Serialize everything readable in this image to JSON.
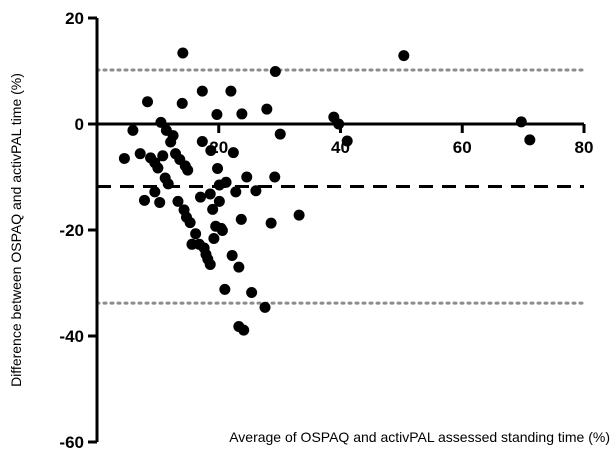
{
  "chart_data": {
    "type": "scatter",
    "title": "",
    "xlabel": "Average of OSPAQ and activPAL assessed standing time (%)",
    "ylabel": "Difference between OSPAQ and activPAL time  (%)",
    "xlim": [
      0,
      80
    ],
    "ylim": [
      -60,
      20
    ],
    "x_ticks": [
      20,
      40,
      60,
      80
    ],
    "y_ticks": [
      20,
      0,
      -20,
      -40,
      -60
    ],
    "grid": false,
    "legend": "none",
    "reference_lines": [
      {
        "y": -11.8,
        "style": "dashed",
        "color": "#000000",
        "role": "mean-difference"
      },
      {
        "y": 10.2,
        "style": "dotted",
        "color": "#8c8c8c",
        "role": "upper-limit-of-agreement"
      },
      {
        "y": -33.8,
        "style": "dotted",
        "color": "#8c8c8c",
        "role": "lower-limit-of-agreement"
      }
    ],
    "colors": {
      "points": "#000000",
      "axis": "#000000"
    },
    "points": [
      {
        "x": 4.5,
        "y": -6.5
      },
      {
        "x": 5.9,
        "y": -1.2
      },
      {
        "x": 7.1,
        "y": -5.6
      },
      {
        "x": 7.8,
        "y": -14.4
      },
      {
        "x": 8.3,
        "y": 4.2
      },
      {
        "x": 8.8,
        "y": -6.4
      },
      {
        "x": 9.5,
        "y": -7.3
      },
      {
        "x": 9.5,
        "y": -12.8
      },
      {
        "x": 10.0,
        "y": -8.3
      },
      {
        "x": 10.3,
        "y": -14.8
      },
      {
        "x": 10.5,
        "y": 0.3
      },
      {
        "x": 10.8,
        "y": -6.0
      },
      {
        "x": 11.2,
        "y": -10.2
      },
      {
        "x": 11.4,
        "y": -1.2
      },
      {
        "x": 11.7,
        "y": -11.3
      },
      {
        "x": 12.1,
        "y": -3.4
      },
      {
        "x": 12.5,
        "y": -2.2
      },
      {
        "x": 12.9,
        "y": -5.6
      },
      {
        "x": 13.3,
        "y": -14.6
      },
      {
        "x": 13.6,
        "y": -6.7
      },
      {
        "x": 14.0,
        "y": 3.9
      },
      {
        "x": 14.1,
        "y": 13.4
      },
      {
        "x": 14.3,
        "y": -16.2
      },
      {
        "x": 14.5,
        "y": -7.9
      },
      {
        "x": 14.7,
        "y": -17.6
      },
      {
        "x": 14.9,
        "y": -8.7
      },
      {
        "x": 15.3,
        "y": -18.6
      },
      {
        "x": 15.6,
        "y": -22.7
      },
      {
        "x": 16.2,
        "y": -20.7
      },
      {
        "x": 16.8,
        "y": -22.7
      },
      {
        "x": 17.0,
        "y": -13.8
      },
      {
        "x": 17.3,
        "y": -3.3
      },
      {
        "x": 17.3,
        "y": 6.2
      },
      {
        "x": 17.6,
        "y": -23.4
      },
      {
        "x": 17.9,
        "y": -24.6
      },
      {
        "x": 18.2,
        "y": -25.5
      },
      {
        "x": 18.6,
        "y": -26.5
      },
      {
        "x": 18.6,
        "y": -13.2
      },
      {
        "x": 18.7,
        "y": -5.0
      },
      {
        "x": 19.0,
        "y": -16.1
      },
      {
        "x": 19.2,
        "y": -21.6
      },
      {
        "x": 19.5,
        "y": -19.3
      },
      {
        "x": 19.7,
        "y": 1.8
      },
      {
        "x": 19.8,
        "y": -8.4
      },
      {
        "x": 20.1,
        "y": -14.6
      },
      {
        "x": 20.1,
        "y": -11.5
      },
      {
        "x": 20.4,
        "y": -19.7
      },
      {
        "x": 20.6,
        "y": -20.1
      },
      {
        "x": 21.0,
        "y": -31.2
      },
      {
        "x": 21.2,
        "y": -11.0
      },
      {
        "x": 22.0,
        "y": 6.2
      },
      {
        "x": 22.2,
        "y": -24.8
      },
      {
        "x": 22.4,
        "y": -5.4
      },
      {
        "x": 22.8,
        "y": -12.8
      },
      {
        "x": 23.3,
        "y": -27.0
      },
      {
        "x": 23.3,
        "y": -38.2
      },
      {
        "x": 23.7,
        "y": -18.0
      },
      {
        "x": 23.8,
        "y": 1.9
      },
      {
        "x": 24.1,
        "y": -38.9
      },
      {
        "x": 24.6,
        "y": -10.0
      },
      {
        "x": 25.4,
        "y": -31.8
      },
      {
        "x": 26.1,
        "y": -12.6
      },
      {
        "x": 27.6,
        "y": -34.6
      },
      {
        "x": 27.9,
        "y": 2.8
      },
      {
        "x": 28.6,
        "y": -18.7
      },
      {
        "x": 29.2,
        "y": -10.0
      },
      {
        "x": 29.3,
        "y": 9.9
      },
      {
        "x": 30.1,
        "y": -1.9
      },
      {
        "x": 33.2,
        "y": -17.2
      },
      {
        "x": 38.9,
        "y": 1.3
      },
      {
        "x": 39.7,
        "y": 0.0
      },
      {
        "x": 41.1,
        "y": -3.2
      },
      {
        "x": 50.4,
        "y": 12.9
      },
      {
        "x": 69.7,
        "y": 0.4
      },
      {
        "x": 71.1,
        "y": -3.0
      }
    ]
  }
}
